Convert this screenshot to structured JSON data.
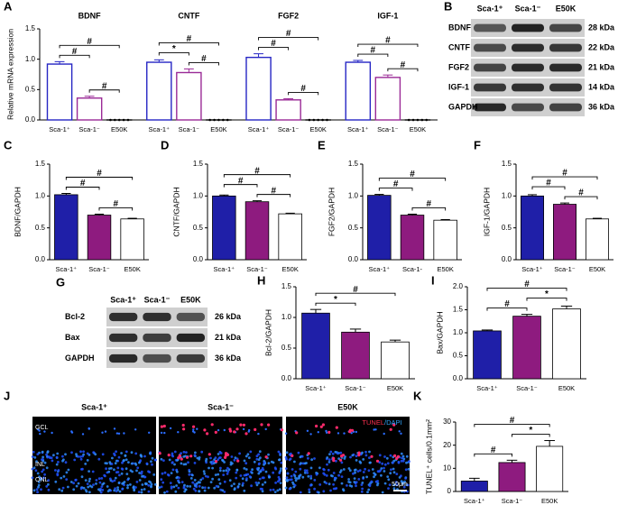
{
  "chart_data": [
    {
      "panel": "A",
      "type": "bar",
      "fill": false,
      "ylabel": "Relative mRNA expression",
      "categories": [
        "Sca-1⁺",
        "Sca-1⁻",
        "E50K"
      ],
      "colors": [
        "#2626c4",
        "#9a2a96",
        "#000000"
      ],
      "ylim": [
        0,
        1.5
      ],
      "yticks": [
        {
          "value": 0,
          "label": "0.0"
        },
        0.5,
        {
          "value": 1,
          "label": "1.0"
        },
        1.5
      ],
      "series": [
        {
          "name": "BDNF",
          "values": [
            0.92,
            0.36,
            0
          ],
          "errors": [
            0.04,
            0.03,
            0
          ],
          "brackets": [
            {
              "pair": [
                1,
                2
              ],
              "label": "#"
            },
            {
              "pair": [
                0,
                1
              ],
              "label": "#"
            },
            {
              "pair": [
                0,
                2
              ],
              "label": "#"
            }
          ]
        },
        {
          "name": "CNTF",
          "values": [
            0.95,
            0.78,
            0
          ],
          "errors": [
            0.04,
            0.06,
            0
          ],
          "brackets": [
            {
              "pair": [
                1,
                2
              ],
              "label": "#"
            },
            {
              "pair": [
                0,
                1
              ],
              "label": "*"
            },
            {
              "pair": [
                0,
                2
              ],
              "label": "#"
            }
          ]
        },
        {
          "name": "FGF2",
          "values": [
            1.03,
            0.33,
            0
          ],
          "errors": [
            0.06,
            0.02,
            0
          ],
          "brackets": [
            {
              "pair": [
                1,
                2
              ],
              "label": "#"
            },
            {
              "pair": [
                0,
                1
              ],
              "label": "#"
            },
            {
              "pair": [
                0,
                2
              ],
              "label": "#"
            }
          ]
        },
        {
          "name": "IGF-1",
          "values": [
            0.95,
            0.7,
            0
          ],
          "errors": [
            0.03,
            0.04,
            0
          ],
          "brackets": [
            {
              "pair": [
                1,
                2
              ],
              "label": "#"
            },
            {
              "pair": [
                0,
                1
              ],
              "label": "#"
            },
            {
              "pair": [
                0,
                2
              ],
              "label": "#"
            }
          ]
        }
      ]
    },
    {
      "panel": "C",
      "type": "bar",
      "fill": true,
      "ylabel": "BDNF/GAPDH",
      "categories": [
        "Sca-1⁺",
        "Sca-1⁻",
        "E50K"
      ],
      "colors": [
        "#1f1fa8",
        "#8e1b7f",
        "#ffffff"
      ],
      "ylim": [
        0,
        1.5
      ],
      "yticks": [
        {
          "value": 0,
          "label": "0.0"
        },
        0.5,
        {
          "value": 1,
          "label": "1.0"
        },
        1.5
      ],
      "values": [
        1.02,
        0.7,
        0.64
      ],
      "errors": [
        0.02,
        0.015,
        0.01
      ],
      "brackets": [
        {
          "pair": [
            1,
            2
          ],
          "label": "#"
        },
        {
          "pair": [
            0,
            1
          ],
          "label": "#"
        },
        {
          "pair": [
            0,
            2
          ],
          "label": "#"
        }
      ]
    },
    {
      "panel": "D",
      "type": "bar",
      "fill": true,
      "ylabel": "CNTF/GAPDH",
      "categories": [
        "Sca-1⁺",
        "Sca-1⁻",
        "E50K"
      ],
      "colors": [
        "#1f1fa8",
        "#8e1b7f",
        "#ffffff"
      ],
      "ylim": [
        0,
        1.5
      ],
      "yticks": [
        {
          "value": 0,
          "label": "0.0"
        },
        0.5,
        {
          "value": 1,
          "label": "1.0"
        },
        1.5
      ],
      "values": [
        1.0,
        0.91,
        0.72
      ],
      "errors": [
        0.015,
        0.015,
        0.01
      ],
      "brackets": [
        {
          "pair": [
            1,
            2
          ],
          "label": "#"
        },
        {
          "pair": [
            0,
            1
          ],
          "label": "#"
        },
        {
          "pair": [
            0,
            2
          ],
          "label": "#"
        }
      ]
    },
    {
      "panel": "E",
      "type": "bar",
      "fill": true,
      "ylabel": "FGF2/GAPDH",
      "categories": [
        "Sca-1⁺",
        "Sca-1-",
        "E50K"
      ],
      "colors": [
        "#1f1fa8",
        "#8e1b7f",
        "#ffffff"
      ],
      "ylim": [
        0,
        1.5
      ],
      "yticks": [
        {
          "value": 0,
          "label": "0.0"
        },
        0.5,
        {
          "value": 1,
          "label": "1.0"
        },
        1.5
      ],
      "values": [
        1.01,
        0.7,
        0.62
      ],
      "errors": [
        0.015,
        0.015,
        0.01
      ],
      "brackets": [
        {
          "pair": [
            1,
            2
          ],
          "label": "#"
        },
        {
          "pair": [
            0,
            1
          ],
          "label": "#"
        },
        {
          "pair": [
            0,
            2
          ],
          "label": "#"
        }
      ]
    },
    {
      "panel": "F",
      "type": "bar",
      "fill": true,
      "ylabel": "IGF-1/GAPDH",
      "categories": [
        "Sca-1⁺",
        "Sca-1⁻",
        "E50K"
      ],
      "colors": [
        "#1f1fa8",
        "#8e1b7f",
        "#ffffff"
      ],
      "ylim": [
        0,
        1.5
      ],
      "yticks": [
        {
          "value": 0,
          "label": "0.0"
        },
        0.5,
        {
          "value": 1,
          "label": "1.0"
        },
        1.5
      ],
      "values": [
        1.0,
        0.87,
        0.64
      ],
      "errors": [
        0.02,
        0.02,
        0.01
      ],
      "brackets": [
        {
          "pair": [
            1,
            2
          ],
          "label": "#"
        },
        {
          "pair": [
            0,
            1
          ],
          "label": "#"
        },
        {
          "pair": [
            0,
            2
          ],
          "label": "#"
        }
      ]
    },
    {
      "panel": "H",
      "type": "bar",
      "fill": true,
      "ylabel": "Bcl-2/GAPDH",
      "categories": [
        "Sca-1⁺",
        "Sca-1⁻",
        "E50K"
      ],
      "colors": [
        "#1f1fa8",
        "#8e1b7f",
        "#ffffff"
      ],
      "ylim": [
        0,
        1.5
      ],
      "yticks": [
        {
          "value": 0,
          "label": "0.0"
        },
        0.5,
        {
          "value": 1,
          "label": "1.0"
        },
        1.5
      ],
      "values": [
        1.07,
        0.76,
        0.6
      ],
      "errors": [
        0.06,
        0.05,
        0.03
      ],
      "brackets": [
        {
          "pair": [
            0,
            1
          ],
          "label": "*"
        },
        {
          "pair": [
            0,
            2
          ],
          "label": "#"
        }
      ]
    },
    {
      "panel": "I",
      "type": "bar",
      "fill": true,
      "ylabel": "Bax/GAPDH",
      "categories": [
        "Sca-1⁺",
        "Sca-1⁻",
        "E50K"
      ],
      "colors": [
        "#1f1fa8",
        "#8e1b7f",
        "#ffffff"
      ],
      "ylim": [
        0,
        2
      ],
      "yticks": [
        {
          "value": 0,
          "label": "0.0"
        },
        0.5,
        {
          "value": 1,
          "label": "1.0"
        },
        1.5,
        {
          "value": 2,
          "label": "2.0"
        }
      ],
      "values": [
        1.04,
        1.36,
        1.52
      ],
      "errors": [
        0.02,
        0.04,
        0.06
      ],
      "brackets": [
        {
          "pair": [
            0,
            1
          ],
          "label": "#"
        },
        {
          "pair": [
            1,
            2
          ],
          "label": "*"
        },
        {
          "pair": [
            0,
            2
          ],
          "label": "#"
        }
      ]
    },
    {
      "panel": "K",
      "type": "bar",
      "fill": true,
      "ylabel": "TUNEL⁺ cells/0.1mm²",
      "categories": [
        "Sca-1⁺",
        "Sca-1⁻",
        "E50K"
      ],
      "colors": [
        "#1f1fa8",
        "#8e1b7f",
        "#ffffff"
      ],
      "ylim": [
        0,
        30
      ],
      "yticks": [
        0,
        10,
        20,
        30
      ],
      "values": [
        4.5,
        12.5,
        19.5
      ],
      "errors": [
        1.2,
        1.0,
        2.5
      ],
      "brackets": [
        {
          "pair": [
            0,
            1
          ],
          "label": "#"
        },
        {
          "pair": [
            1,
            2
          ],
          "label": "*"
        },
        {
          "pair": [
            0,
            2
          ],
          "label": "#"
        }
      ]
    }
  ],
  "blots": [
    {
      "panel": "B",
      "columns": [
        "Sca-1⁺",
        "Sca-1⁻",
        "E50K"
      ],
      "rows": [
        {
          "protein": "BDNF",
          "size": "28 kDa"
        },
        {
          "protein": "CNTF",
          "size": "22 kDa"
        },
        {
          "protein": "FGF2",
          "size": "21 kDa"
        },
        {
          "protein": "IGF-1",
          "size": "14 kDa"
        },
        {
          "protein": "GAPDH",
          "size": "36 kDa"
        }
      ]
    },
    {
      "panel": "G",
      "columns": [
        "Sca-1⁺",
        "Sca-1⁻",
        "E50K"
      ],
      "rows": [
        {
          "protein": "Bcl-2",
          "size": "26 kDa"
        },
        {
          "protein": "Bax",
          "size": "21 kDa"
        },
        {
          "protein": "GAPDH",
          "size": "36 kDa"
        }
      ]
    }
  ],
  "micrographs": {
    "panel": "J",
    "columns": [
      "Sca-1⁺",
      "Sca-1⁻",
      "E50K"
    ],
    "layers": [
      "GCL",
      "INL",
      "ONL"
    ],
    "stains": [
      "TUNEL",
      "/DAPI"
    ],
    "scale_bar": "50μm"
  }
}
